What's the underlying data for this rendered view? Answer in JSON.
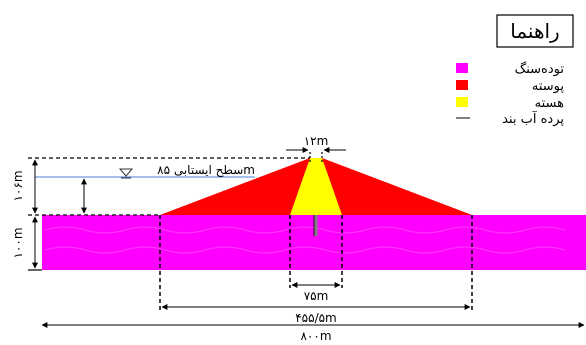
{
  "legend": {
    "title": "راهنما",
    "items": [
      {
        "label": "توده‌سنگ",
        "color": "#ff00ff",
        "kind": "swatch"
      },
      {
        "label": "پوسته",
        "color": "#ff0000",
        "kind": "swatch"
      },
      {
        "label": "هسته",
        "color": "#ffff00",
        "kind": "swatch"
      },
      {
        "label": "پرده آب بند",
        "color": "#808080",
        "kind": "line"
      }
    ]
  },
  "water_level_label": "سطح ایستابی ۸۵m",
  "dimensions": {
    "crest_width": "۱۲m",
    "dam_height": "۱۰۶m",
    "foundation_depth": "۱۰۰m",
    "core_base_width": "۷۵m",
    "dam_base_width": "۴۵۵/۵m",
    "total_width": "۸۰۰m"
  },
  "colors": {
    "rock_mass": "#ff00ff",
    "shell": "#ff0000",
    "core": "#ffff00",
    "water_line": "#4a7fd6",
    "grout_curtain": "#808080"
  }
}
